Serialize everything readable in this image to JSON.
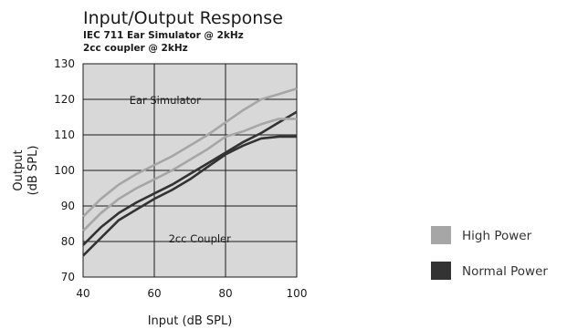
{
  "chart_data": {
    "type": "line",
    "title": "Input/Output Response",
    "subtitle_lines": [
      "IEC 711 Ear Simulator @ 2kHz",
      "2cc coupler @ 2kHz"
    ],
    "xlabel": "Input (dB SPL)",
    "ylabel_lines": [
      "Output",
      "(dB SPL)"
    ],
    "xlim": [
      40,
      100
    ],
    "ylim": [
      70,
      130
    ],
    "xticks": [
      "40",
      "60",
      "80",
      "100"
    ],
    "yticks": [
      "70",
      "80",
      "90",
      "100",
      "110",
      "120",
      "130"
    ],
    "grid": true,
    "legend_position": "right",
    "annotations": [
      "Ear Simulator",
      "2cc Coupler"
    ],
    "legend": [
      {
        "label": "High Power",
        "color": "#a6a6a6"
      },
      {
        "label": "Normal Power",
        "color": "#333333"
      }
    ],
    "series": [
      {
        "name": "High Power",
        "color": "#a6a6a6",
        "x": [
          40,
          45,
          50,
          55,
          60,
          65,
          70,
          75,
          80,
          85,
          90,
          95,
          100
        ],
        "y": [
          87,
          92,
          96,
          99,
          101.5,
          104,
          107,
          110,
          113.5,
          117,
          120,
          121.5,
          123
        ]
      },
      {
        "name": "Normal Power",
        "color": "#333333",
        "x": [
          40,
          45,
          50,
          55,
          60,
          65,
          70,
          75,
          80,
          85,
          90,
          95,
          100
        ],
        "y": [
          79,
          84,
          88,
          91,
          93.5,
          96,
          99,
          102,
          105,
          108,
          110.5,
          113.5,
          116.5
        ]
      },
      {
        "name": "High Power",
        "color": "#a6a6a6",
        "x": [
          40,
          45,
          50,
          55,
          60,
          65,
          70,
          75,
          80,
          85,
          90,
          95,
          100
        ],
        "y": [
          83,
          88,
          92,
          95,
          97.5,
          100,
          103,
          106,
          109.5,
          111,
          113,
          114.5,
          114.5
        ]
      },
      {
        "name": "Normal Power",
        "color": "#333333",
        "x": [
          40,
          45,
          50,
          55,
          60,
          65,
          70,
          75,
          80,
          85,
          90,
          95,
          100
        ],
        "y": [
          76,
          81,
          86,
          89,
          92,
          94.5,
          97.5,
          101,
          104.5,
          107,
          109,
          109.5,
          109.5
        ]
      }
    ]
  }
}
